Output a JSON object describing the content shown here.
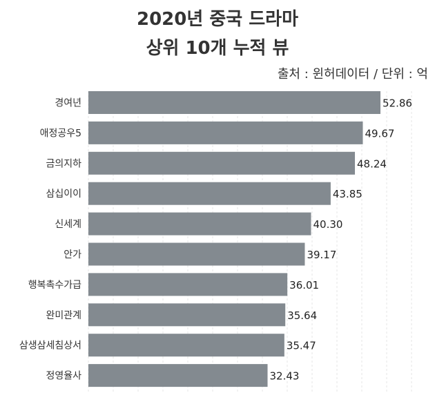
{
  "chart_data": {
    "type": "bar",
    "orientation": "horizontal",
    "title": "2020년 중국 드라마",
    "subtitle": "상위 10개 누적 뷰",
    "source_note": "출처 : 윈허데이터 / 단위 : 억",
    "categories": [
      "경여년",
      "애정공우5",
      "금의지하",
      "삼십이이",
      "신세계",
      "안가",
      "행복촉수가급",
      "완미관계",
      "삼생삼세침상서",
      "정영율사"
    ],
    "values": [
      52.86,
      49.67,
      48.24,
      43.85,
      40.3,
      39.17,
      36.01,
      35.64,
      35.47,
      32.43
    ],
    "value_labels": [
      "52.86",
      "49.67",
      "48.24",
      "43.85",
      "40.30",
      "39.17",
      "36.01",
      "35.64",
      "35.47",
      "32.43"
    ],
    "xlim": [
      0,
      58
    ],
    "grid": true,
    "bar_color": "#838a90"
  }
}
